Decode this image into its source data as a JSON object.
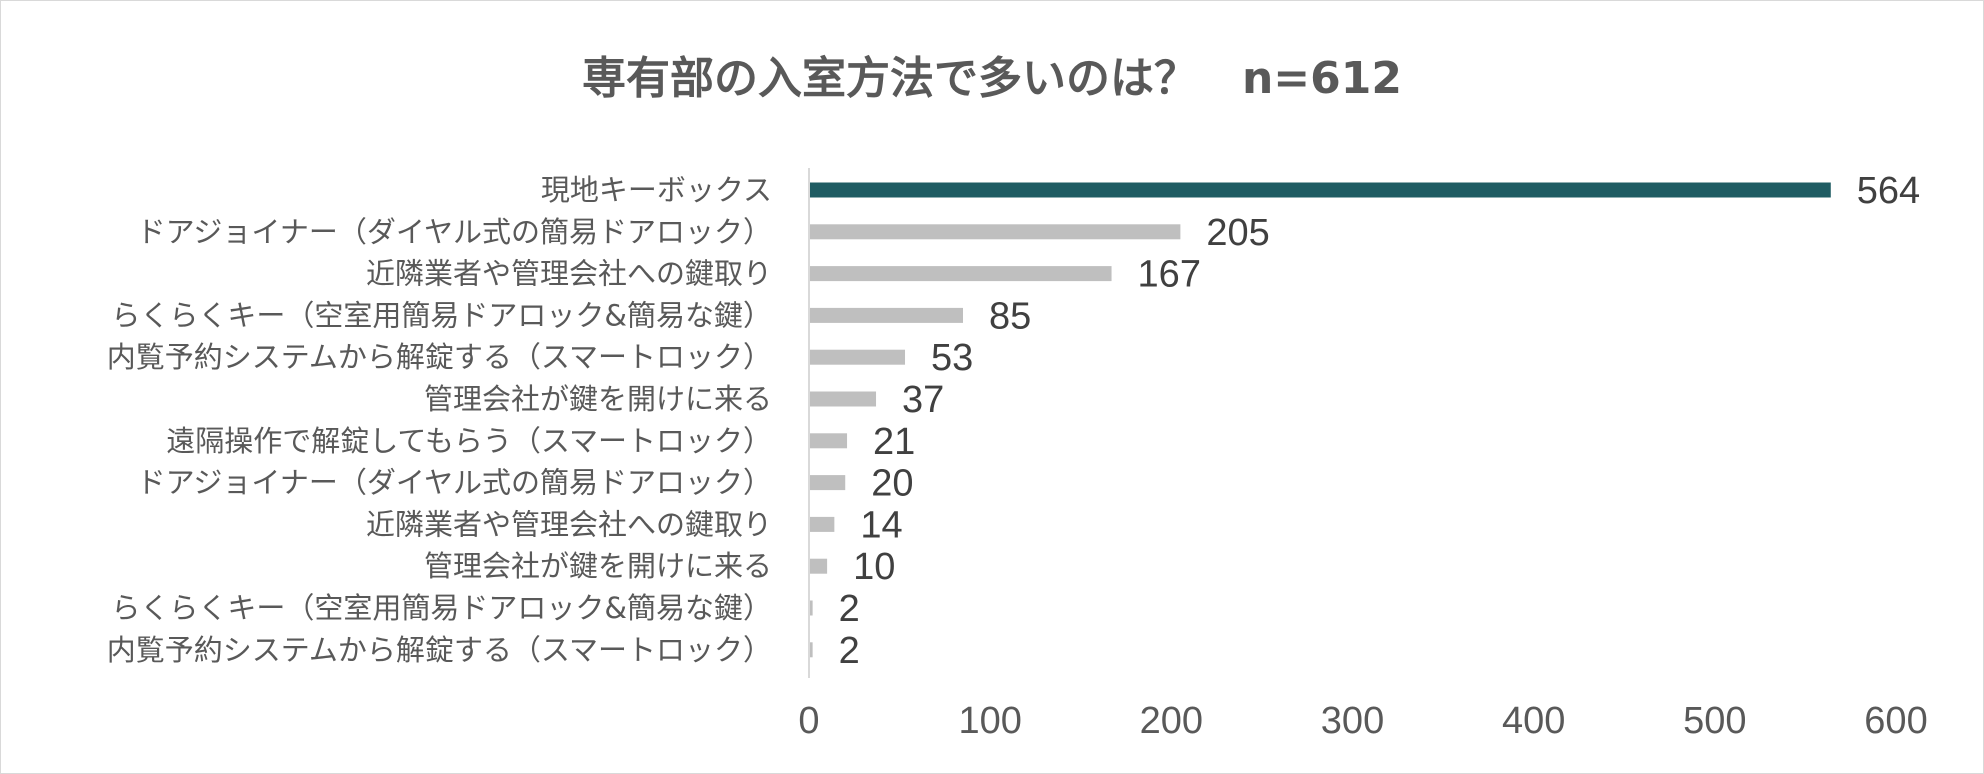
{
  "chart_data": {
    "type": "bar",
    "orientation": "horizontal",
    "title": "専有部の入室方法で多いのは？　n=612",
    "categories": [
      "現地キーボックス",
      "ドアジョイナー（ダイヤル式の簡易ドアロック）",
      "近隣業者や管理会社への鍵取り",
      "らくらくキー（空室用簡易ドアロック&簡易な鍵）",
      "内覧予約システムから解錠する（スマートロック）",
      "管理会社が鍵を開けに来る",
      "遠隔操作で解錠してもらう（スマートロック）",
      "ドアジョイナー（ダイヤル式の簡易ドアロック）",
      "近隣業者や管理会社への鍵取り",
      "管理会社が鍵を開けに来る",
      "らくらくキー（空室用簡易ドアロック&簡易な鍵）",
      "内覧予約システムから解錠する（スマートロック）"
    ],
    "values": [
      564,
      205,
      167,
      85,
      53,
      37,
      21,
      20,
      14,
      10,
      2,
      2
    ],
    "xlim": [
      0,
      600
    ],
    "xticks": [
      0,
      100,
      200,
      300,
      400,
      500,
      600
    ],
    "grid": false,
    "legend": "none",
    "colors": {
      "highlight": "#1f5c63",
      "default": "#bfbfbf",
      "axis": "#d9d9d9"
    }
  }
}
